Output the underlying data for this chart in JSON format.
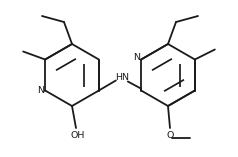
{
  "bg_color": "#ffffff",
  "line_color": "#1a1a1a",
  "line_width": 1.3,
  "font_size": 6.8,
  "figsize": [
    2.38,
    1.57
  ],
  "dpi": 100,
  "xlim": [
    0,
    238
  ],
  "ylim": [
    0,
    157
  ]
}
